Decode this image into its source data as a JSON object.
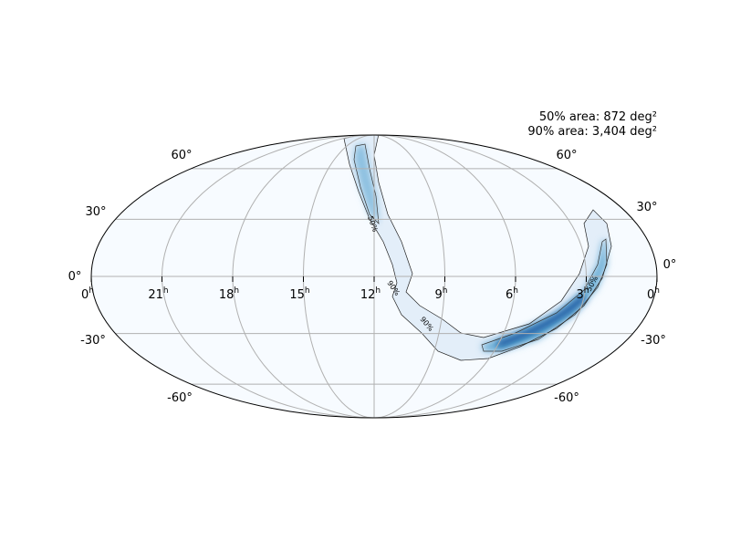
{
  "annotations": [
    "50% area: 872 deg²",
    "90% area: 3,404 deg²"
  ],
  "ra_labels": [
    "0",
    "21",
    "18",
    "15",
    "12",
    "9",
    "6",
    "3",
    "0"
  ],
  "ra_unit": "h",
  "dec_labels": [
    "60°",
    "30°",
    "0°",
    "-30°",
    "-60°"
  ],
  "contour_labels": [
    "50%",
    "90%",
    "90%",
    "50%"
  ]
}
